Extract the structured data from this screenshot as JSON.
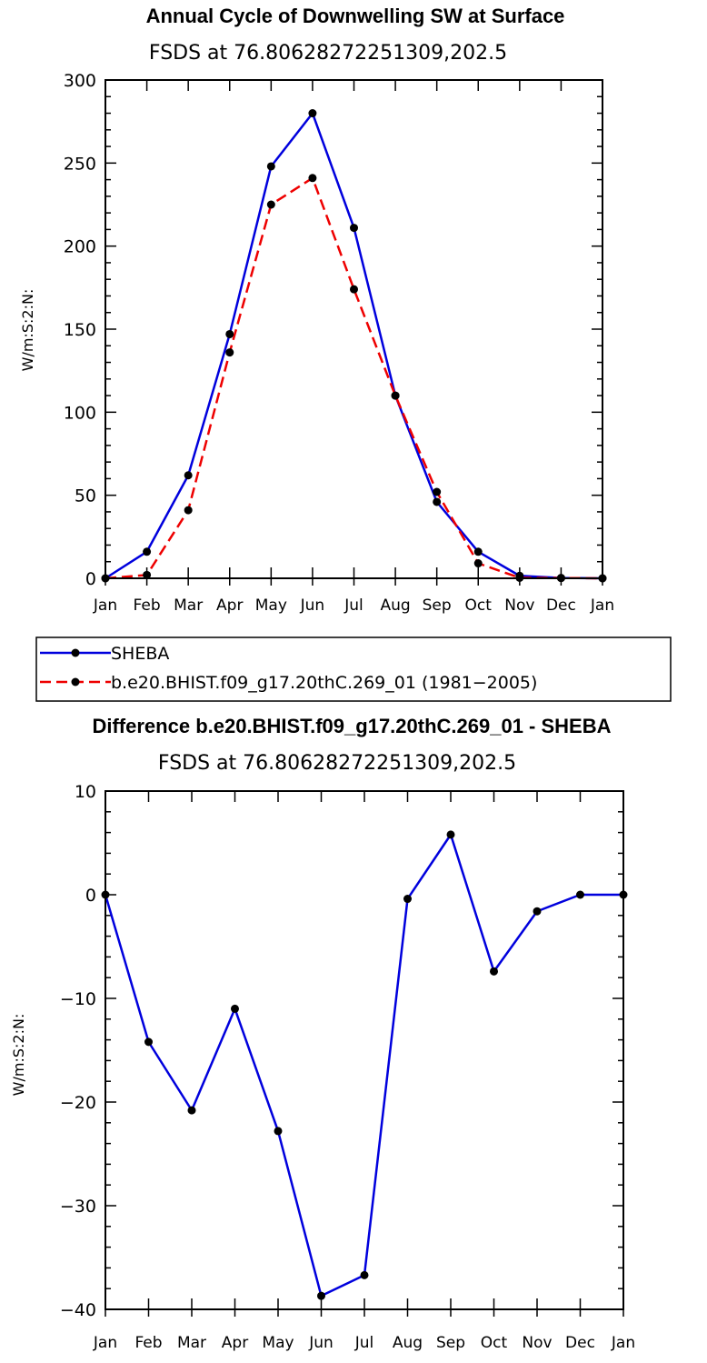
{
  "chart_data": [
    {
      "type": "line",
      "title": "Annual Cycle of Downwelling SW at Surface",
      "subtitle": "FSDS at 76.80628272251309,202.5",
      "ylabel": "W/m:S:2:N:",
      "xlabel": "",
      "ylim": [
        0,
        300
      ],
      "yticks": [
        0,
        50,
        100,
        150,
        200,
        250,
        300
      ],
      "ytick_labels": [
        "0",
        "50",
        "100",
        "150",
        "200",
        "250",
        "300"
      ],
      "categories": [
        "Jan",
        "Feb",
        "Mar",
        "Apr",
        "May",
        "Jun",
        "Jul",
        "Aug",
        "Sep",
        "Oct",
        "Nov",
        "Dec",
        "Jan"
      ],
      "series": [
        {
          "name": "SHEBA",
          "color": "#0000dd",
          "dash": "solid",
          "values": [
            0,
            16,
            62,
            147,
            248,
            280,
            211,
            110,
            46,
            16,
            1.5,
            0.2,
            0
          ]
        },
        {
          "name": "b.e20.BHIST.f09_g17.20thC.269_01 (1981−2005)",
          "color": "#ee0000",
          "dash": "dashed",
          "values": [
            0,
            2,
            41,
            136,
            225,
            241,
            174,
            110,
            52,
            9,
            0.3,
            0.2,
            0
          ]
        }
      ],
      "legend": "below"
    },
    {
      "type": "line",
      "title": "Difference b.e20.BHIST.f09_g17.20thC.269_01 - SHEBA",
      "subtitle": "FSDS at 76.80628272251309,202.5",
      "ylabel": "W/m:S:2:N:",
      "xlabel": "",
      "ylim": [
        -40,
        10
      ],
      "yticks": [
        -40,
        -30,
        -20,
        -10,
        0,
        10
      ],
      "ytick_labels": [
        "−40",
        "−30",
        "−20",
        "−10",
        "0",
        "10"
      ],
      "categories": [
        "Jan",
        "Feb",
        "Mar",
        "Apr",
        "May",
        "Jun",
        "Jul",
        "Aug",
        "Sep",
        "Oct",
        "Nov",
        "Dec",
        "Jan"
      ],
      "series": [
        {
          "name": "Difference",
          "color": "#0000dd",
          "dash": "solid",
          "values": [
            0,
            -14.2,
            -20.8,
            -11.0,
            -22.8,
            -38.7,
            -36.7,
            -0.4,
            5.8,
            -7.4,
            -1.6,
            0,
            0
          ]
        }
      ]
    }
  ]
}
